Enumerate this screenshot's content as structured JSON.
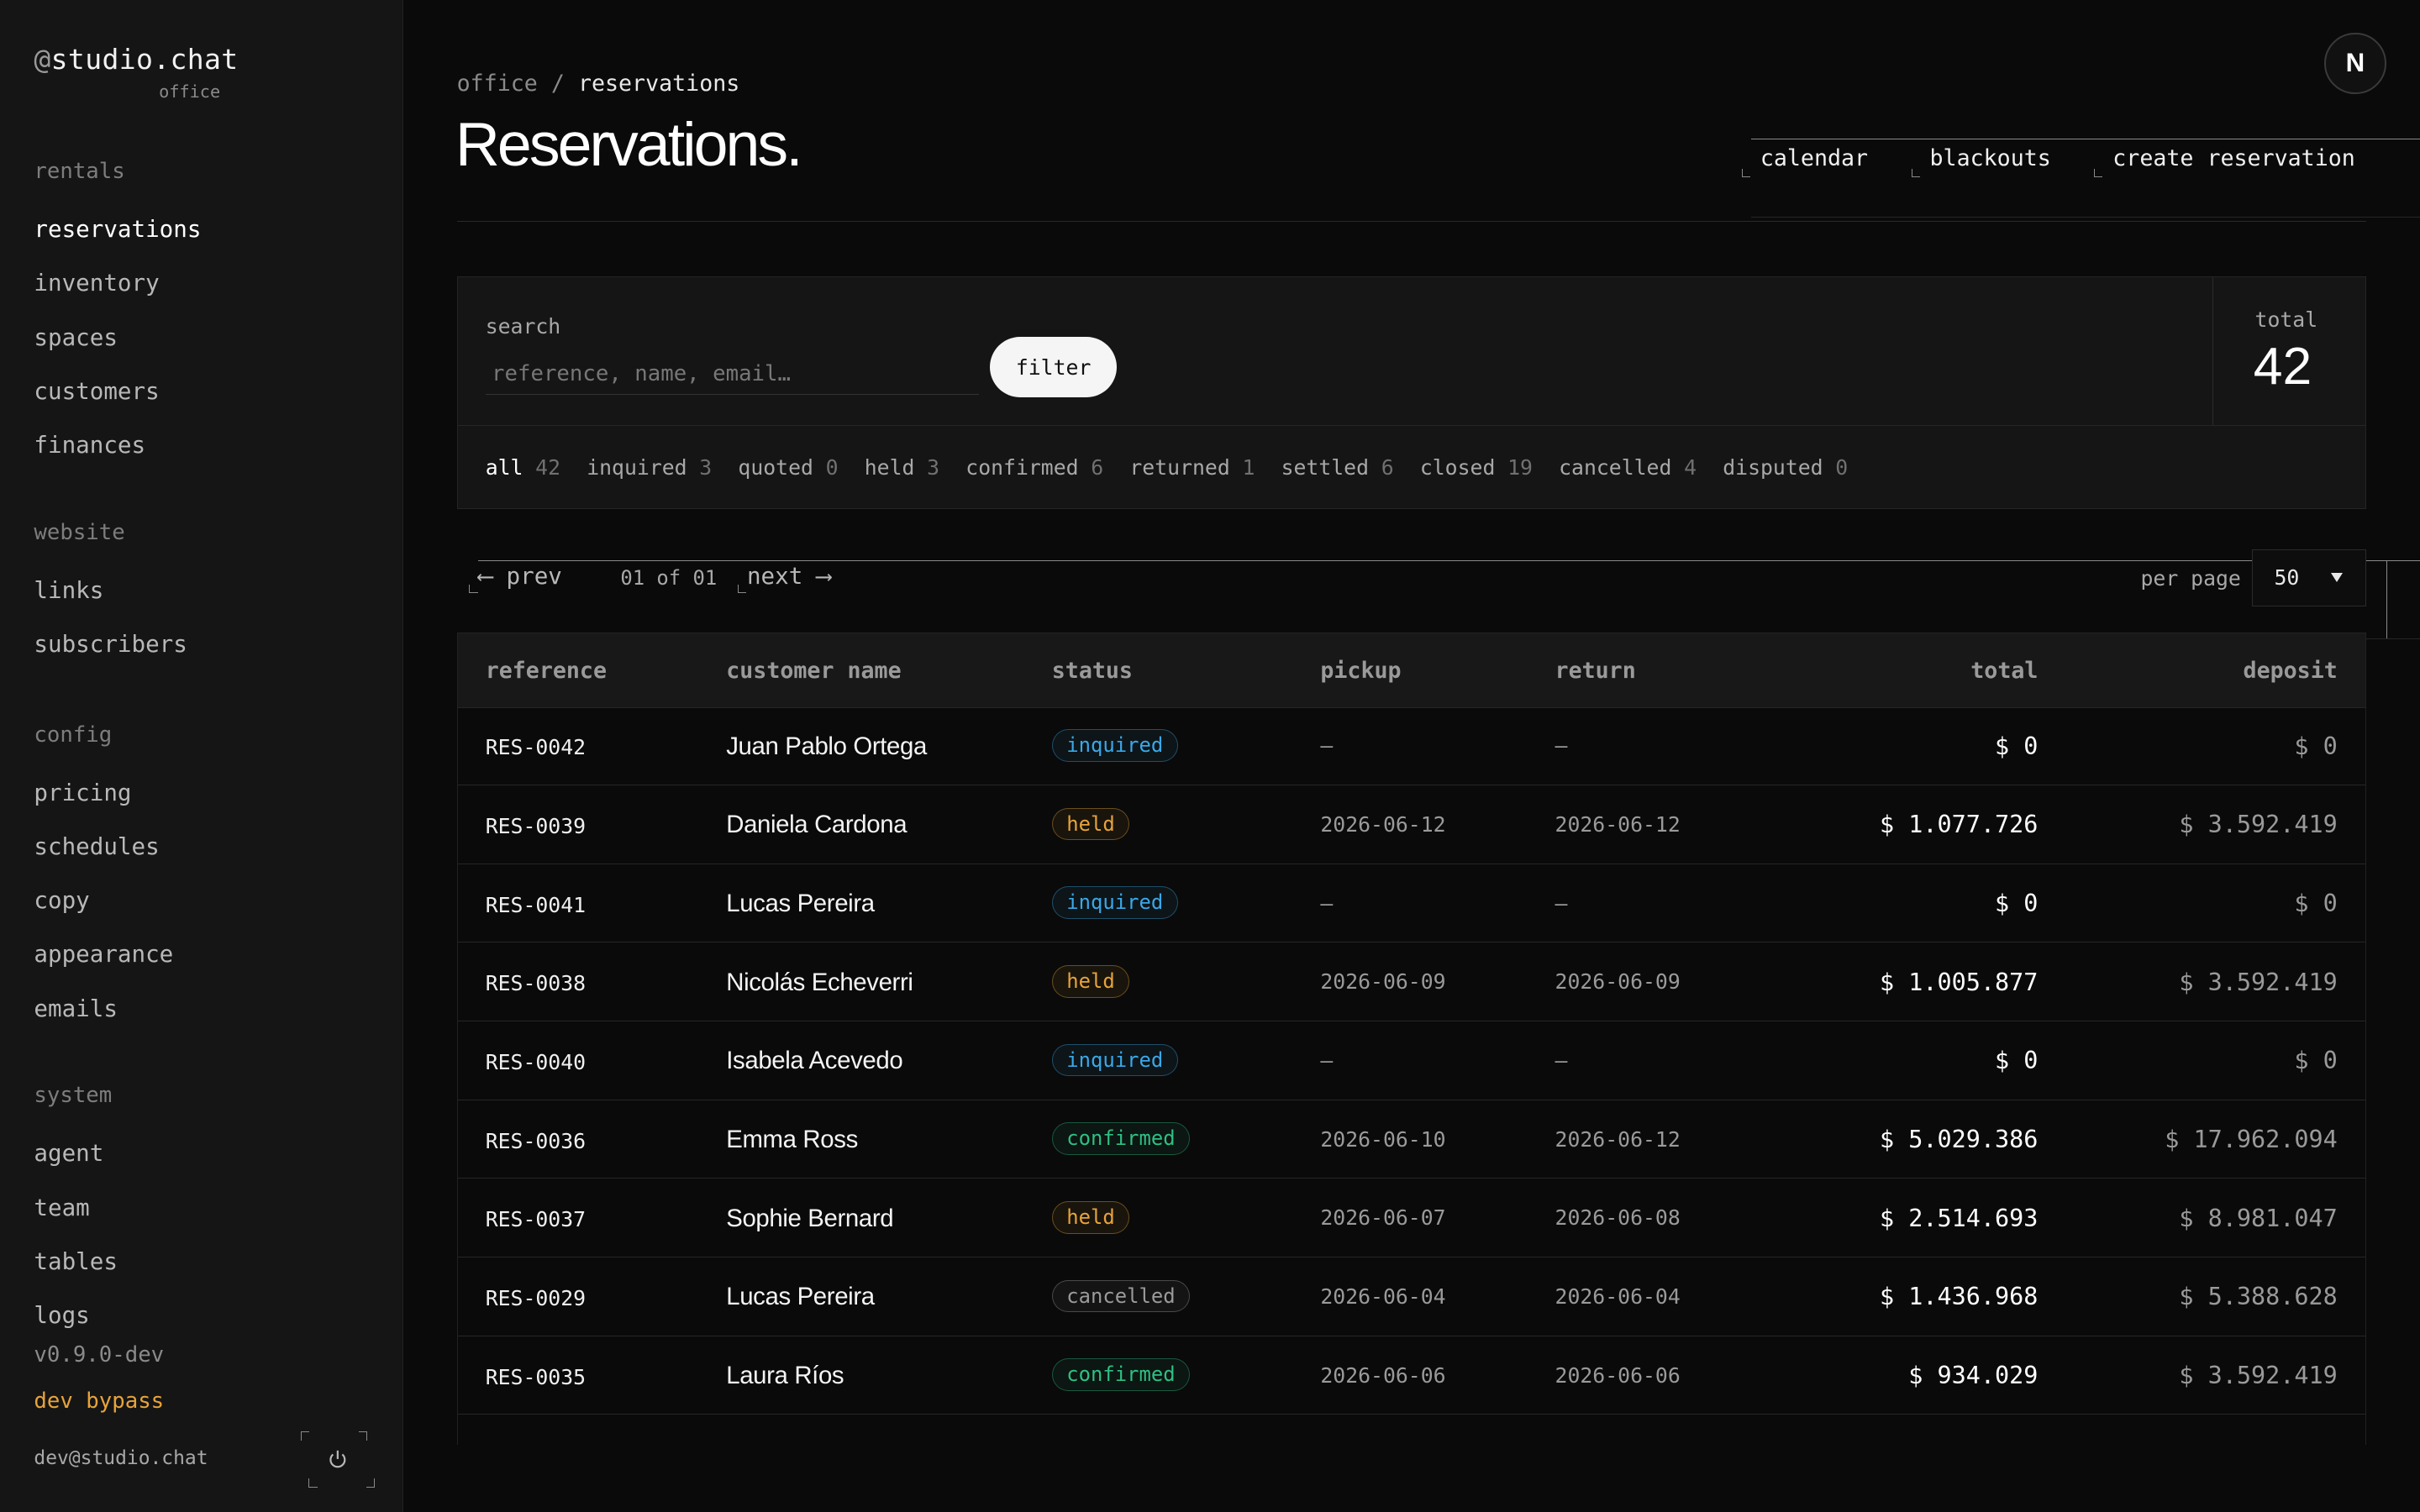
{
  "app": {
    "brand": "studio.chat",
    "brand_at": "@",
    "brand_sub": "office"
  },
  "sidebar": {
    "sections": [
      {
        "label": "rentals",
        "items": [
          "reservations",
          "inventory",
          "spaces",
          "customers",
          "finances"
        ]
      },
      {
        "label": "website",
        "items": [
          "links",
          "subscribers"
        ]
      },
      {
        "label": "config",
        "items": [
          "pricing",
          "schedules",
          "copy",
          "appearance",
          "emails"
        ]
      },
      {
        "label": "system",
        "items": [
          "agent",
          "team",
          "tables",
          "logs"
        ]
      }
    ],
    "active_item": "reservations",
    "version": "v0.9.0-dev",
    "mode": "dev bypass",
    "user_email": "dev@studio.chat"
  },
  "header": {
    "breadcrumb_root": "office",
    "breadcrumb_sep": " / ",
    "breadcrumb_current": "reservations",
    "title": "Reservations.",
    "actions": [
      "calendar",
      "blackouts",
      "create reservation"
    ],
    "avatar_letter": "N"
  },
  "search": {
    "label": "search",
    "placeholder": "reference, name, email…",
    "value": "",
    "filter_label": "filter",
    "total_label": "total",
    "total_value": "42"
  },
  "status_filters": [
    {
      "label": "all",
      "count": "42",
      "active": true
    },
    {
      "label": "inquired",
      "count": "3"
    },
    {
      "label": "quoted",
      "count": "0"
    },
    {
      "label": "held",
      "count": "3"
    },
    {
      "label": "confirmed",
      "count": "6"
    },
    {
      "label": "returned",
      "count": "1"
    },
    {
      "label": "settled",
      "count": "6"
    },
    {
      "label": "closed",
      "count": "19"
    },
    {
      "label": "cancelled",
      "count": "4"
    },
    {
      "label": "disputed",
      "count": "0"
    }
  ],
  "pagination": {
    "prev_label": "⟵ prev",
    "next_label": "next ⟶",
    "info": "01 of 01",
    "per_page_label": "per page",
    "per_page_value": "50"
  },
  "table": {
    "columns": [
      "reference",
      "customer name",
      "status",
      "pickup",
      "return",
      "total",
      "deposit"
    ],
    "rows": [
      {
        "reference": "RES-0042",
        "name": "Juan Pablo Ortega",
        "status": "inquired",
        "pickup": "—",
        "return": "—",
        "total": "$ 0",
        "deposit": "$ 0"
      },
      {
        "reference": "RES-0039",
        "name": "Daniela Cardona",
        "status": "held",
        "pickup": "2026-06-12",
        "return": "2026-06-12",
        "total": "$ 1.077.726",
        "deposit": "$ 3.592.419"
      },
      {
        "reference": "RES-0041",
        "name": "Lucas Pereira",
        "status": "inquired",
        "pickup": "—",
        "return": "—",
        "total": "$ 0",
        "deposit": "$ 0"
      },
      {
        "reference": "RES-0038",
        "name": "Nicolás Echeverri",
        "status": "held",
        "pickup": "2026-06-09",
        "return": "2026-06-09",
        "total": "$ 1.005.877",
        "deposit": "$ 3.592.419"
      },
      {
        "reference": "RES-0040",
        "name": "Isabela Acevedo",
        "status": "inquired",
        "pickup": "—",
        "return": "—",
        "total": "$ 0",
        "deposit": "$ 0"
      },
      {
        "reference": "RES-0036",
        "name": "Emma Ross",
        "status": "confirmed",
        "pickup": "2026-06-10",
        "return": "2026-06-12",
        "total": "$ 5.029.386",
        "deposit": "$ 17.962.094"
      },
      {
        "reference": "RES-0037",
        "name": "Sophie Bernard",
        "status": "held",
        "pickup": "2026-06-07",
        "return": "2026-06-08",
        "total": "$ 2.514.693",
        "deposit": "$ 8.981.047"
      },
      {
        "reference": "RES-0029",
        "name": "Lucas Pereira",
        "status": "cancelled",
        "pickup": "2026-06-04",
        "return": "2026-06-04",
        "total": "$ 1.436.968",
        "deposit": "$ 5.388.628"
      },
      {
        "reference": "RES-0035",
        "name": "Laura Ríos",
        "status": "confirmed",
        "pickup": "2026-06-06",
        "return": "2026-06-06",
        "total": "$ 934.029",
        "deposit": "$ 3.592.419"
      }
    ]
  },
  "status_colors": {
    "inquired": "#3aa8e8",
    "held": "#e8a33a",
    "confirmed": "#2fbf83",
    "cancelled": "#9a9a9a"
  }
}
